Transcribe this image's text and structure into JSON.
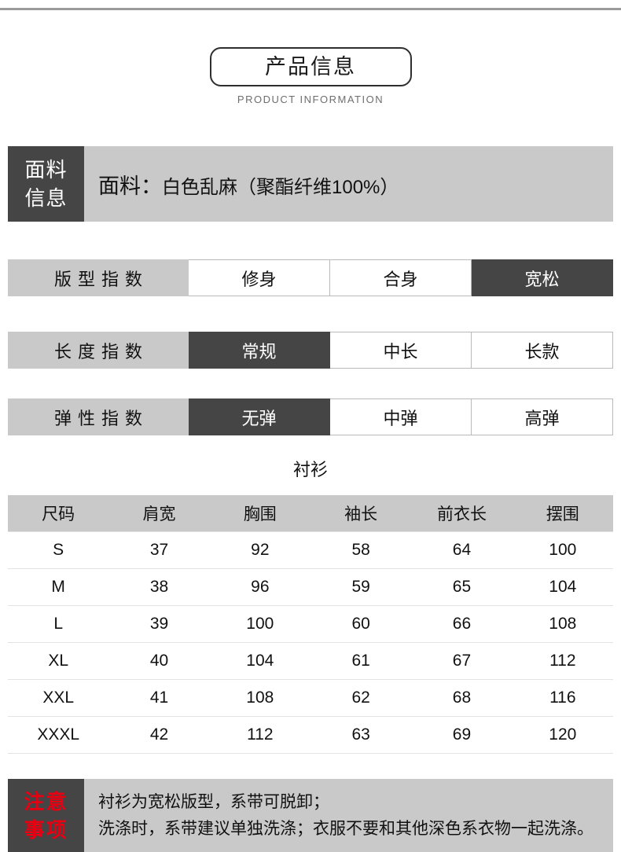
{
  "header": {
    "title": "产品信息",
    "subtitle": "PRODUCT INFORMATION"
  },
  "fabric": {
    "label_line1": "面料",
    "label_line2": "信息",
    "text_prefix": "面料：",
    "text_value": "白色乱麻（聚酯纤维100%）"
  },
  "indexes": [
    {
      "label": "版型指数",
      "options": [
        {
          "label": "修身",
          "selected": false
        },
        {
          "label": "合身",
          "selected": false
        },
        {
          "label": "宽松",
          "selected": true
        }
      ]
    },
    {
      "label": "长度指数",
      "options": [
        {
          "label": "常规",
          "selected": true
        },
        {
          "label": "中长",
          "selected": false
        },
        {
          "label": "长款",
          "selected": false
        }
      ]
    },
    {
      "label": "弹性指数",
      "options": [
        {
          "label": "无弹",
          "selected": true
        },
        {
          "label": "中弹",
          "selected": false
        },
        {
          "label": "高弹",
          "selected": false
        }
      ]
    }
  ],
  "size_table": {
    "title": "衬衫",
    "headers": [
      "尺码",
      "肩宽",
      "胸围",
      "袖长",
      "前衣长",
      "摆围"
    ],
    "rows": [
      [
        "S",
        "37",
        "92",
        "58",
        "64",
        "100"
      ],
      [
        "M",
        "38",
        "96",
        "59",
        "65",
        "104"
      ],
      [
        "L",
        "39",
        "100",
        "60",
        "66",
        "108"
      ],
      [
        "XL",
        "40",
        "104",
        "61",
        "67",
        "112"
      ],
      [
        "XXL",
        "41",
        "108",
        "62",
        "68",
        "116"
      ],
      [
        "XXXL",
        "42",
        "112",
        "63",
        "69",
        "120"
      ]
    ]
  },
  "notice": {
    "label_line1": "注意",
    "label_line2": "事项",
    "lines": [
      "衬衫为宽松版型，系带可脱卸；",
      "洗涤时，系带建议单独洗涤；衣服不要和其他深色系衣物一起洗涤。"
    ]
  },
  "colors": {
    "dark": "#454545",
    "light_gray_bar": "#c9c9c9",
    "notice_red": "#e60012",
    "top_line": "#9a9a9a"
  }
}
